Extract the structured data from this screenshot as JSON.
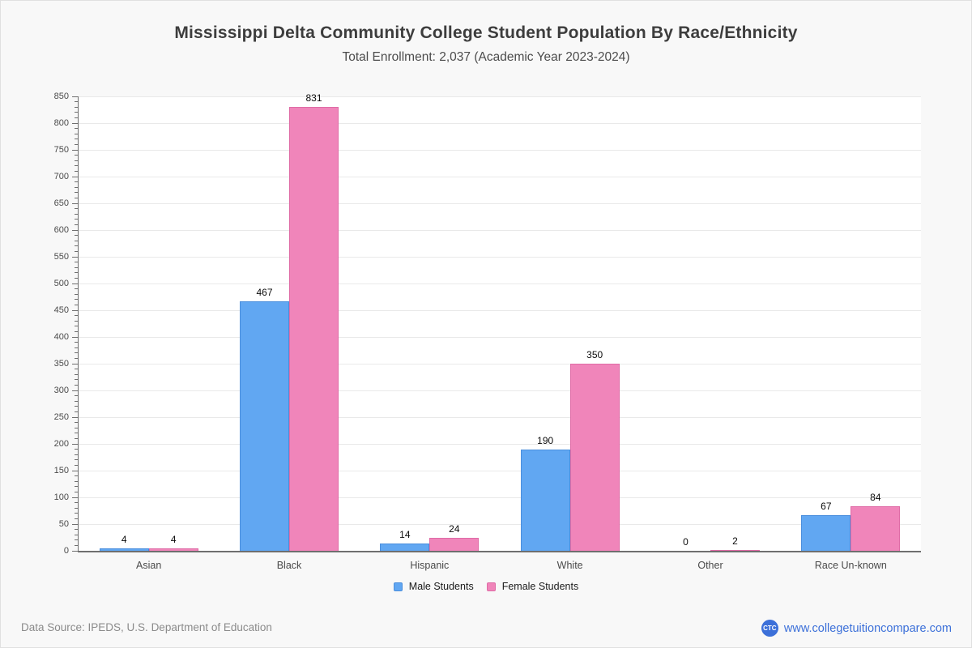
{
  "header": {
    "title": "Mississippi Delta Community College Student Population By Race/Ethnicity",
    "subtitle": "Total Enrollment: 2,037 (Academic Year 2023-2024)"
  },
  "chart_data": {
    "type": "bar",
    "title": "Mississippi Delta Community College Student Population By Race/Ethnicity",
    "subtitle": "Total Enrollment: 2,037 (Academic Year 2023-2024)",
    "categories": [
      "Asian",
      "Black",
      "Hispanic",
      "White",
      "Other",
      "Race Un-known"
    ],
    "series": [
      {
        "name": "Male Students",
        "color": "#61a7f2",
        "border_color": "#4a8edd",
        "values": [
          4,
          467,
          14,
          190,
          0,
          67
        ]
      },
      {
        "name": "Female Students",
        "color": "#f085ba",
        "border_color": "#df6ba6",
        "values": [
          4,
          831,
          24,
          350,
          2,
          84
        ]
      }
    ],
    "ylim": [
      0,
      850
    ],
    "yticks": [
      0,
      50,
      100,
      150,
      200,
      250,
      300,
      350,
      400,
      450,
      500,
      550,
      600,
      650,
      700,
      750,
      800,
      850
    ],
    "ytick_step": 50,
    "minor_tick_step": 10,
    "grid": true,
    "data_labels": true,
    "legend_position": "bottom"
  },
  "footer": {
    "source": "Data Source: IPEDS, U.S. Department of Education",
    "logo_text": "CTC",
    "logo_color": "#3c70d9",
    "website": "www.collegetuitioncompare.com",
    "website_color": "#3c70d9"
  }
}
